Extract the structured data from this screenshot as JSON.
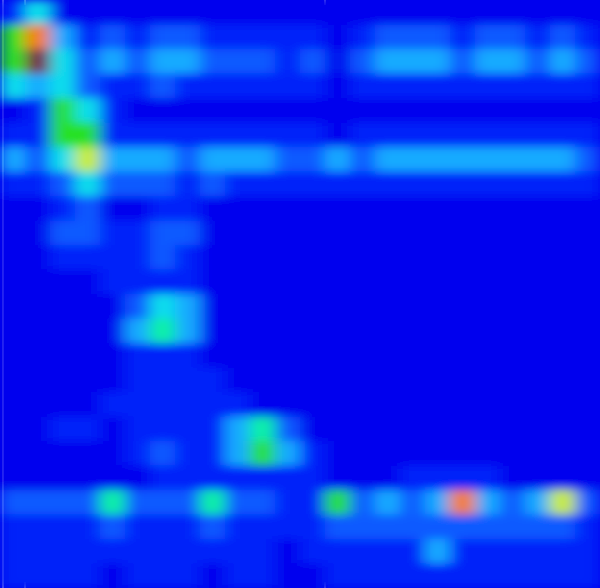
{
  "chart_data": {
    "type": "heatmap",
    "tick_labels": false,
    "xlim": [
      0,
      24
    ],
    "ylim": [
      24,
      0
    ],
    "zlim": [
      0,
      10
    ],
    "reference_lines": [
      {
        "x": 0.12,
        "line_style": "solid"
      },
      {
        "x": 1,
        "line_style": "dashed"
      },
      {
        "x": 13,
        "line_style": "dashed"
      }
    ],
    "cells": [
      [
        1,
        4,
        0,
        0,
        0,
        0,
        0,
        0,
        0,
        0,
        0,
        0,
        0,
        0,
        0,
        0,
        0,
        0,
        0,
        0,
        0,
        0,
        0,
        0
      ],
      [
        6,
        8,
        3,
        1,
        2,
        1,
        2,
        2,
        1,
        1,
        1,
        1,
        1,
        0,
        1,
        2,
        2,
        2,
        1,
        2,
        2,
        1,
        2,
        1
      ],
      [
        6,
        10,
        4,
        2,
        3,
        2,
        3,
        3,
        2,
        2,
        2,
        1,
        2,
        0,
        2,
        3,
        3,
        3,
        2,
        3,
        3,
        2,
        3,
        2
      ],
      [
        4,
        3,
        4,
        2,
        1,
        1,
        2,
        1,
        1,
        1,
        1,
        1,
        1,
        0,
        1,
        1,
        1,
        1,
        1,
        1,
        1,
        1,
        1,
        1
      ],
      [
        0,
        1,
        6,
        4,
        1,
        0,
        0,
        0,
        0,
        0,
        0,
        0,
        0,
        0,
        0,
        0,
        0,
        0,
        0,
        0,
        0,
        0,
        0,
        0
      ],
      [
        1,
        1,
        6,
        6,
        1,
        1,
        1,
        1,
        1,
        1,
        1,
        1,
        1,
        0,
        1,
        1,
        1,
        1,
        1,
        1,
        1,
        1,
        1,
        1
      ],
      [
        3,
        2,
        4,
        7,
        3,
        3,
        3,
        2,
        3,
        3,
        3,
        2,
        2,
        3,
        2,
        3,
        3,
        3,
        3,
        3,
        3,
        3,
        3,
        2
      ],
      [
        1,
        1,
        2,
        4,
        2,
        2,
        2,
        1,
        2,
        1,
        1,
        1,
        1,
        1,
        1,
        1,
        1,
        1,
        1,
        1,
        1,
        1,
        1,
        1
      ],
      [
        0,
        0,
        1,
        2,
        0,
        0,
        1,
        1,
        0,
        0,
        0,
        0,
        0,
        0,
        0,
        0,
        0,
        0,
        0,
        0,
        0,
        0,
        0,
        0
      ],
      [
        0,
        0,
        2,
        2,
        1,
        1,
        2,
        2,
        0,
        0,
        0,
        0,
        0,
        0,
        0,
        0,
        0,
        0,
        0,
        0,
        0,
        0,
        0,
        0
      ],
      [
        0,
        0,
        1,
        1,
        1,
        1,
        2,
        1,
        0,
        0,
        0,
        0,
        0,
        0,
        0,
        0,
        0,
        0,
        0,
        0,
        0,
        0,
        0,
        0
      ],
      [
        0,
        0,
        0,
        0,
        1,
        1,
        1,
        1,
        0,
        0,
        0,
        0,
        0,
        0,
        0,
        0,
        0,
        0,
        0,
        0,
        0,
        0,
        0,
        0
      ],
      [
        0,
        0,
        0,
        0,
        0,
        2,
        4,
        3,
        0,
        0,
        0,
        0,
        0,
        0,
        0,
        0,
        0,
        0,
        0,
        0,
        0,
        0,
        0,
        0
      ],
      [
        0,
        0,
        0,
        0,
        0,
        3,
        5,
        3,
        0,
        0,
        0,
        0,
        0,
        0,
        0,
        0,
        0,
        0,
        0,
        0,
        0,
        0,
        0,
        0
      ],
      [
        0,
        0,
        0,
        0,
        0,
        1,
        1,
        1,
        0,
        0,
        0,
        0,
        0,
        0,
        0,
        0,
        0,
        0,
        0,
        0,
        0,
        0,
        0,
        0
      ],
      [
        0,
        0,
        0,
        0,
        0,
        1,
        1,
        1,
        1,
        0,
        0,
        0,
        0,
        0,
        0,
        0,
        0,
        0,
        0,
        0,
        0,
        0,
        0,
        0
      ],
      [
        0,
        0,
        0,
        0,
        1,
        1,
        1,
        1,
        1,
        1,
        0,
        0,
        0,
        0,
        0,
        0,
        0,
        0,
        0,
        0,
        0,
        0,
        0,
        0
      ],
      [
        0,
        0,
        1,
        1,
        0,
        1,
        1,
        1,
        1,
        3,
        5,
        2,
        0,
        0,
        0,
        0,
        0,
        0,
        0,
        0,
        0,
        0,
        0,
        0
      ],
      [
        0,
        0,
        0,
        0,
        0,
        1,
        2,
        1,
        1,
        3,
        6,
        3,
        1,
        0,
        0,
        0,
        0,
        0,
        0,
        0,
        0,
        0,
        0,
        0
      ],
      [
        0,
        0,
        0,
        0,
        0,
        0,
        1,
        1,
        1,
        1,
        1,
        1,
        1,
        0,
        0,
        0,
        1,
        1,
        1,
        1,
        0,
        0,
        0,
        0
      ],
      [
        2,
        2,
        2,
        2,
        5,
        2,
        2,
        2,
        5,
        2,
        2,
        1,
        1,
        6,
        2,
        3,
        2,
        3,
        8,
        3,
        2,
        3,
        7,
        2
      ],
      [
        1,
        1,
        1,
        1,
        2,
        1,
        1,
        1,
        2,
        1,
        1,
        1,
        1,
        2,
        2,
        2,
        2,
        2,
        2,
        2,
        2,
        2,
        2,
        1
      ],
      [
        1,
        1,
        1,
        1,
        1,
        1,
        1,
        1,
        1,
        1,
        1,
        0,
        1,
        1,
        1,
        1,
        1,
        3,
        1,
        1,
        1,
        1,
        1,
        1
      ],
      [
        1,
        1,
        1,
        1,
        0,
        1,
        1,
        1,
        0,
        1,
        1,
        0,
        0,
        1,
        1,
        1,
        1,
        1,
        1,
        1,
        1,
        1,
        1,
        1
      ]
    ]
  }
}
